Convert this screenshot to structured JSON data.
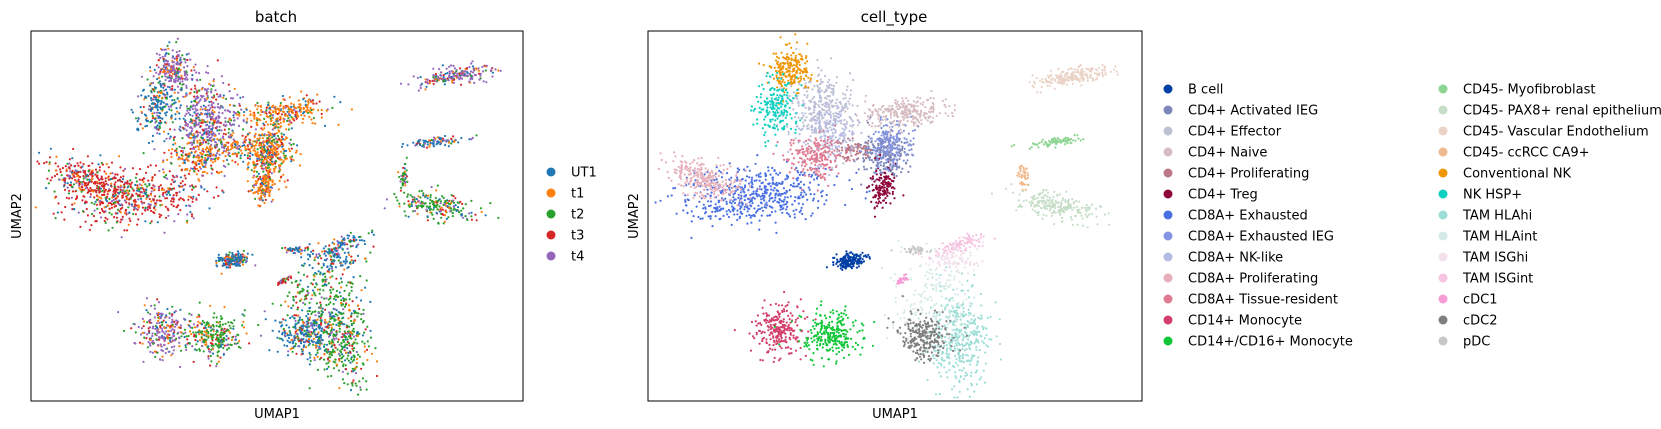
{
  "chart_data": [
    {
      "type": "scatter",
      "title": "batch",
      "xlabel": "UMAP1",
      "ylabel": "UMAP2",
      "ticks": false,
      "legend": "right",
      "legend_entries": [
        {
          "label": "UT1",
          "color": "#1f77b4"
        },
        {
          "label": "t1",
          "color": "#ff7f0e"
        },
        {
          "label": "t2",
          "color": "#2ca02c"
        },
        {
          "label": "t3",
          "color": "#d62728"
        },
        {
          "label": "t4",
          "color": "#9467bd"
        }
      ]
    },
    {
      "type": "scatter",
      "title": "cell_type",
      "xlabel": "UMAP1",
      "ylabel": "UMAP2",
      "ticks": false,
      "legend": "right",
      "legend_entries": [
        {
          "label": "B cell",
          "color": "#023fa5"
        },
        {
          "label": "CD4+ Activated IEG",
          "color": "#7d87b9"
        },
        {
          "label": "CD4+ Effector",
          "color": "#bec1d4"
        },
        {
          "label": "CD4+ Naive",
          "color": "#d6bcc0"
        },
        {
          "label": "CD4+ Proliferating",
          "color": "#bb7784"
        },
        {
          "label": "CD4+ Treg",
          "color": "#8e063b"
        },
        {
          "label": "CD8A+ Exhausted",
          "color": "#4a6fe3"
        },
        {
          "label": "CD8A+ Exhausted IEG",
          "color": "#8595e1"
        },
        {
          "label": "CD8A+ NK-like",
          "color": "#b5bbe3"
        },
        {
          "label": "CD8A+ Proliferating",
          "color": "#e6afb9"
        },
        {
          "label": "CD8A+ Tissue-resident",
          "color": "#e07b91"
        },
        {
          "label": "CD14+ Monocyte",
          "color": "#d33f6a"
        },
        {
          "label": "CD14+/CD16+ Monocyte",
          "color": "#11c638"
        },
        {
          "label": "CD45- Myofibroblast",
          "color": "#8dd593"
        },
        {
          "label": "CD45- PAX8+ renal epithelium",
          "color": "#c6dec7"
        },
        {
          "label": "CD45- Vascular Endothelium",
          "color": "#ead3c6"
        },
        {
          "label": "CD45- ccRCC CA9+",
          "color": "#f0b98d"
        },
        {
          "label": "Conventional NK",
          "color": "#ef9708"
        },
        {
          "label": "NK HSP+",
          "color": "#0fcfc0"
        },
        {
          "label": "TAM HLAhi",
          "color": "#9cded6"
        },
        {
          "label": "TAM HLAint",
          "color": "#d5eae7"
        },
        {
          "label": "TAM ISGhi",
          "color": "#f3e1eb"
        },
        {
          "label": "TAM ISGint",
          "color": "#f6c4e1"
        },
        {
          "label": "cDC1",
          "color": "#f79cd4"
        },
        {
          "label": "cDC2",
          "color": "#7f7f7f"
        },
        {
          "label": "pDC",
          "color": "#c7c7c7"
        }
      ]
    }
  ]
}
